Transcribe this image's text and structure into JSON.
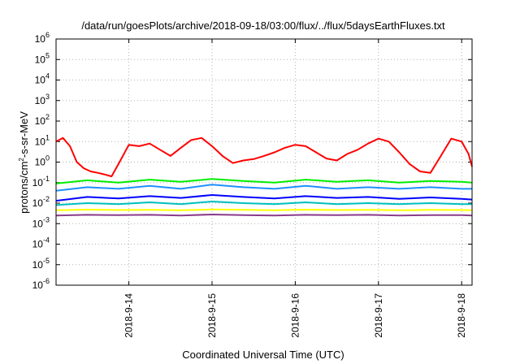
{
  "chart_data": {
    "type": "line",
    "title": "/data/run/goesPlots/archive/2018-09-18/03:00/flux/../flux/5daysEarthFluxes.txt",
    "xlabel": "Coordinated Universal Time (UTC)",
    "ylabel": {
      "prefix": "protons/cm",
      "sup": "2",
      "suffix": "-s-sr-MeV"
    },
    "yscale": "log",
    "ylim": [
      1e-06,
      1000000.0
    ],
    "yticks": [
      {
        "exp": "-6",
        "value": 1e-06
      },
      {
        "exp": "-5",
        "value": 1e-05
      },
      {
        "exp": "-4",
        "value": 0.0001
      },
      {
        "exp": "-3",
        "value": 0.001
      },
      {
        "exp": "-2",
        "value": 0.01
      },
      {
        "exp": "-1",
        "value": 0.1
      },
      {
        "exp": "0",
        "value": 1
      },
      {
        "exp": "1",
        "value": 10
      },
      {
        "exp": "2",
        "value": 100
      },
      {
        "exp": "3",
        "value": 1000
      },
      {
        "exp": "4",
        "value": 10000
      },
      {
        "exp": "5",
        "value": 100000
      },
      {
        "exp": "6",
        "value": 1000000
      }
    ],
    "ytick_base": "10",
    "xlim": [
      "2018-09-13T03:00",
      "2018-09-18T03:00"
    ],
    "xticks": [
      "2018-9-14",
      "2018-9-15",
      "2018-9-16",
      "2018-9-17",
      "2018-9-18"
    ],
    "grid": true,
    "series": [
      {
        "color": "#ff0000",
        "x": [
          "2018-09-13T03:00",
          "2018-09-13T05:00",
          "2018-09-13T07:00",
          "2018-09-13T09:00",
          "2018-09-13T11:00",
          "2018-09-13T13:00",
          "2018-09-13T15:00",
          "2018-09-13T17:00",
          "2018-09-13T19:00",
          "2018-09-13T21:00",
          "2018-09-14T00:00",
          "2018-09-14T03:00",
          "2018-09-14T06:00",
          "2018-09-14T09:00",
          "2018-09-14T12:00",
          "2018-09-14T15:00",
          "2018-09-14T18:00",
          "2018-09-14T21:00",
          "2018-09-15T00:00",
          "2018-09-15T03:00",
          "2018-09-15T06:00",
          "2018-09-15T09:00",
          "2018-09-15T12:00",
          "2018-09-15T15:00",
          "2018-09-15T18:00",
          "2018-09-15T21:00",
          "2018-09-16T00:00",
          "2018-09-16T03:00",
          "2018-09-16T06:00",
          "2018-09-16T09:00",
          "2018-09-16T12:00",
          "2018-09-16T15:00",
          "2018-09-16T18:00",
          "2018-09-16T21:00",
          "2018-09-17T00:00",
          "2018-09-17T03:00",
          "2018-09-17T06:00",
          "2018-09-17T09:00",
          "2018-09-17T12:00",
          "2018-09-17T15:00",
          "2018-09-17T18:00",
          "2018-09-17T21:00",
          "2018-09-18T00:00",
          "2018-09-18T02:00",
          "2018-09-18T03:00"
        ],
        "values": [
          10,
          15,
          6,
          1,
          0.5,
          0.35,
          0.3,
          0.25,
          0.2,
          0.8,
          7,
          6,
          8,
          4,
          2,
          5,
          12,
          15,
          6,
          2,
          0.9,
          1.2,
          1.4,
          2,
          3,
          5,
          7,
          6,
          3,
          1.5,
          1.2,
          2.5,
          4,
          8,
          14,
          10,
          3,
          0.8,
          0.35,
          0.3,
          2,
          14,
          10,
          2.5,
          0.6
        ]
      },
      {
        "color": "#00ee00",
        "x": [
          "2018-09-13T03:00",
          "2018-09-13T12:00",
          "2018-09-13T21:00",
          "2018-09-14T06:00",
          "2018-09-14T15:00",
          "2018-09-15T00:00",
          "2018-09-15T09:00",
          "2018-09-15T18:00",
          "2018-09-16T03:00",
          "2018-09-16T12:00",
          "2018-09-16T21:00",
          "2018-09-17T06:00",
          "2018-09-17T15:00",
          "2018-09-18T00:00",
          "2018-09-18T03:00"
        ],
        "values": [
          0.09,
          0.13,
          0.1,
          0.14,
          0.11,
          0.15,
          0.12,
          0.1,
          0.14,
          0.11,
          0.13,
          0.1,
          0.12,
          0.11,
          0.1
        ]
      },
      {
        "color": "#1e90ff",
        "x": [
          "2018-09-13T03:00",
          "2018-09-13T12:00",
          "2018-09-13T21:00",
          "2018-09-14T06:00",
          "2018-09-14T15:00",
          "2018-09-15T00:00",
          "2018-09-15T09:00",
          "2018-09-15T18:00",
          "2018-09-16T03:00",
          "2018-09-16T12:00",
          "2018-09-16T21:00",
          "2018-09-17T06:00",
          "2018-09-17T15:00",
          "2018-09-18T00:00",
          "2018-09-18T03:00"
        ],
        "values": [
          0.04,
          0.06,
          0.05,
          0.07,
          0.05,
          0.08,
          0.06,
          0.05,
          0.07,
          0.05,
          0.06,
          0.05,
          0.06,
          0.05,
          0.05
        ]
      },
      {
        "color": "#0000ff",
        "x": [
          "2018-09-13T03:00",
          "2018-09-13T12:00",
          "2018-09-13T21:00",
          "2018-09-14T06:00",
          "2018-09-14T15:00",
          "2018-09-15T00:00",
          "2018-09-15T09:00",
          "2018-09-15T18:00",
          "2018-09-16T03:00",
          "2018-09-16T12:00",
          "2018-09-16T21:00",
          "2018-09-17T06:00",
          "2018-09-17T15:00",
          "2018-09-18T00:00",
          "2018-09-18T03:00"
        ],
        "values": [
          0.013,
          0.02,
          0.017,
          0.022,
          0.018,
          0.025,
          0.02,
          0.017,
          0.022,
          0.018,
          0.02,
          0.016,
          0.019,
          0.016,
          0.015
        ]
      },
      {
        "color": "#00bfbf",
        "x": [
          "2018-09-13T03:00",
          "2018-09-13T12:00",
          "2018-09-13T21:00",
          "2018-09-14T06:00",
          "2018-09-14T15:00",
          "2018-09-15T00:00",
          "2018-09-15T09:00",
          "2018-09-15T18:00",
          "2018-09-16T03:00",
          "2018-09-16T12:00",
          "2018-09-16T21:00",
          "2018-09-17T06:00",
          "2018-09-17T15:00",
          "2018-09-18T00:00",
          "2018-09-18T03:00"
        ],
        "values": [
          0.008,
          0.01,
          0.009,
          0.011,
          0.009,
          0.012,
          0.01,
          0.009,
          0.011,
          0.009,
          0.01,
          0.009,
          0.01,
          0.009,
          0.009
        ]
      },
      {
        "color": "#ffff00",
        "x": [
          "2018-09-13T03:00",
          "2018-09-13T12:00",
          "2018-09-13T21:00",
          "2018-09-14T06:00",
          "2018-09-14T15:00",
          "2018-09-15T00:00",
          "2018-09-15T09:00",
          "2018-09-15T18:00",
          "2018-09-16T03:00",
          "2018-09-16T12:00",
          "2018-09-16T21:00",
          "2018-09-17T06:00",
          "2018-09-17T15:00",
          "2018-09-18T00:00",
          "2018-09-18T03:00"
        ],
        "values": [
          0.0045,
          0.0048,
          0.0046,
          0.0047,
          0.0045,
          0.0049,
          0.0047,
          0.0045,
          0.0048,
          0.0046,
          0.0047,
          0.0045,
          0.0047,
          0.0046,
          0.0045
        ]
      },
      {
        "color": "#8b3a8b",
        "x": [
          "2018-09-13T03:00",
          "2018-09-13T12:00",
          "2018-09-13T21:00",
          "2018-09-14T06:00",
          "2018-09-14T15:00",
          "2018-09-15T00:00",
          "2018-09-15T09:00",
          "2018-09-15T18:00",
          "2018-09-16T03:00",
          "2018-09-16T12:00",
          "2018-09-16T21:00",
          "2018-09-17T06:00",
          "2018-09-17T15:00",
          "2018-09-18T00:00",
          "2018-09-18T03:00"
        ],
        "values": [
          0.0025,
          0.0027,
          0.0026,
          0.0027,
          0.0025,
          0.0028,
          0.0026,
          0.0025,
          0.0027,
          0.0026,
          0.0027,
          0.0025,
          0.0026,
          0.0026,
          0.0025
        ]
      }
    ]
  }
}
